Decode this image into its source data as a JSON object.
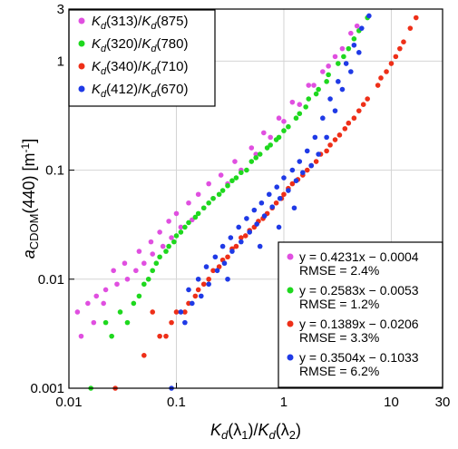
{
  "chart_data": {
    "type": "scatter",
    "xscale": "log",
    "yscale": "log",
    "xlim": [
      0.01,
      30
    ],
    "ylim": [
      0.001,
      3
    ],
    "grid": true,
    "xticks": [
      0.01,
      0.1,
      1,
      10,
      30
    ],
    "xtick_labels": [
      "0.01",
      "0.1",
      "1",
      "10",
      "30"
    ],
    "yticks": [
      0.001,
      0.01,
      0.1,
      1,
      3
    ],
    "ytick_labels": [
      "0.001",
      "0.01",
      "0.1",
      "1",
      "3"
    ],
    "xlabel": {
      "p1": "K",
      "p1_sub": "d",
      "p2": "(λ",
      "p2_sub": "1",
      "p3": ")/",
      "p4": "K",
      "p4_sub": "d",
      "p5": "(λ",
      "p5_sub": "2",
      "p6": ")"
    },
    "ylabel": {
      "main": "a",
      "sub": "CDOM",
      "rest": "(440) [m",
      "sup": "-1",
      "end": "]"
    },
    "legend_position": "top-left",
    "fit_box_position": "bottom-right",
    "series": [
      {
        "name": {
          "k": "K",
          "d": "d",
          "num": "(313)/",
          "den": "(875)"
        },
        "color": "#e04fe0",
        "fit": {
          "equation": "y = 0.4231x − 0.0004",
          "rmse": "RMSE = 2.4%"
        },
        "x": [
          0.012,
          0.015,
          0.018,
          0.022,
          0.028,
          0.035,
          0.042,
          0.05,
          0.06,
          0.075,
          0.09,
          0.11,
          0.14,
          0.18,
          0.22,
          0.3,
          0.4,
          0.55,
          0.75,
          1.0,
          1.4,
          1.9,
          2.6,
          3.5,
          4.8,
          0.013,
          0.017,
          0.021,
          0.026,
          0.033,
          0.045,
          0.058,
          0.07,
          0.085,
          0.1,
          0.13,
          0.16,
          0.2,
          0.26,
          0.35,
          0.5,
          0.65,
          0.9,
          1.2,
          1.7,
          2.3,
          3.0,
          4.2
        ],
        "y": [
          0.005,
          0.006,
          0.007,
          0.008,
          0.009,
          0.01,
          0.012,
          0.014,
          0.017,
          0.02,
          0.024,
          0.03,
          0.035,
          0.045,
          0.055,
          0.075,
          0.1,
          0.14,
          0.2,
          0.28,
          0.4,
          0.6,
          0.9,
          1.3,
          2.1,
          0.003,
          0.004,
          0.006,
          0.012,
          0.014,
          0.018,
          0.022,
          0.027,
          0.034,
          0.04,
          0.05,
          0.06,
          0.075,
          0.09,
          0.12,
          0.16,
          0.22,
          0.3,
          0.42,
          0.6,
          0.8,
          1.1,
          1.8
        ]
      },
      {
        "name": {
          "k": "K",
          "d": "d",
          "num": "(320)/",
          "den": "(780)"
        },
        "color": "#1ed81e",
        "fit": {
          "equation": "y = 0.2583x − 0.0053",
          "rmse": "RMSE = 1.2%"
        },
        "x": [
          0.016,
          0.022,
          0.03,
          0.04,
          0.05,
          0.06,
          0.07,
          0.085,
          0.1,
          0.12,
          0.15,
          0.18,
          0.22,
          0.27,
          0.33,
          0.4,
          0.5,
          0.6,
          0.75,
          0.9,
          1.1,
          1.4,
          1.7,
          2.1,
          2.6,
          3.2,
          4.0,
          5.0,
          6.0,
          0.025,
          0.035,
          0.045,
          0.055,
          0.065,
          0.08,
          0.095,
          0.11,
          0.13,
          0.16,
          0.2,
          0.25,
          0.3,
          0.36,
          0.45,
          0.55,
          0.7,
          0.85,
          1.0,
          1.3,
          1.6,
          2.0,
          2.5,
          3.6,
          4.5
        ],
        "y": [
          0.001,
          0.004,
          0.005,
          0.006,
          0.009,
          0.012,
          0.016,
          0.02,
          0.025,
          0.03,
          0.037,
          0.045,
          0.055,
          0.065,
          0.08,
          0.095,
          0.12,
          0.14,
          0.17,
          0.2,
          0.25,
          0.33,
          0.45,
          0.55,
          0.75,
          0.95,
          1.3,
          1.9,
          2.5,
          0.003,
          0.004,
          0.007,
          0.01,
          0.014,
          0.018,
          0.022,
          0.027,
          0.033,
          0.04,
          0.05,
          0.06,
          0.072,
          0.085,
          0.1,
          0.13,
          0.16,
          0.19,
          0.23,
          0.3,
          0.38,
          0.5,
          0.65,
          1.1,
          1.6
        ]
      },
      {
        "name": {
          "k": "K",
          "d": "d",
          "num": "(340)/",
          "den": "(710)"
        },
        "color": "#ee2f18",
        "fit": {
          "equation": "y = 0.1389x − 0.0206",
          "rmse": "RMSE = 3.3%"
        },
        "x": [
          0.027,
          0.05,
          0.07,
          0.09,
          0.12,
          0.15,
          0.18,
          0.22,
          0.27,
          0.33,
          0.4,
          0.48,
          0.58,
          0.7,
          0.85,
          1.0,
          1.2,
          1.5,
          1.8,
          2.2,
          2.7,
          3.3,
          4.0,
          5.0,
          6.0,
          7.5,
          9.0,
          11.0,
          13.0,
          15.0,
          17.0,
          0.06,
          0.08,
          0.1,
          0.13,
          0.16,
          0.2,
          0.25,
          0.3,
          0.36,
          0.44,
          0.53,
          0.64,
          0.78,
          0.95,
          1.1,
          1.35,
          1.65,
          2.0,
          2.5,
          3.0,
          3.7,
          4.5,
          5.5,
          8.0,
          10.0,
          12.0
        ],
        "y": [
          0.001,
          0.002,
          0.003,
          0.004,
          0.005,
          0.007,
          0.009,
          0.012,
          0.015,
          0.019,
          0.024,
          0.028,
          0.034,
          0.04,
          0.05,
          0.06,
          0.075,
          0.09,
          0.11,
          0.14,
          0.17,
          0.21,
          0.27,
          0.35,
          0.45,
          0.6,
          0.8,
          1.1,
          1.5,
          2.0,
          2.5,
          0.005,
          0.003,
          0.005,
          0.006,
          0.008,
          0.01,
          0.013,
          0.016,
          0.02,
          0.025,
          0.03,
          0.036,
          0.045,
          0.055,
          0.068,
          0.082,
          0.1,
          0.12,
          0.15,
          0.19,
          0.24,
          0.3,
          0.4,
          0.7,
          0.95,
          1.3
        ]
      },
      {
        "name": {
          "k": "K",
          "d": "d",
          "num": "(412)/",
          "den": "(670)"
        },
        "color": "#1f3ae6",
        "fit": {
          "equation": "y = 0.3504x − 0.1033",
          "rmse": "RMSE = 6.2%"
        },
        "x": [
          0.09,
          0.11,
          0.13,
          0.16,
          0.19,
          0.23,
          0.27,
          0.32,
          0.38,
          0.45,
          0.53,
          0.62,
          0.73,
          0.86,
          1.0,
          1.2,
          1.4,
          1.65,
          1.95,
          2.3,
          2.7,
          3.2,
          3.8,
          4.5,
          5.3,
          6.2,
          0.12,
          0.14,
          0.17,
          0.2,
          0.24,
          0.28,
          0.33,
          0.4,
          0.48,
          0.56,
          0.66,
          0.78,
          0.92,
          1.1,
          1.3,
          1.5,
          1.8,
          2.1,
          2.5,
          3.0,
          3.5,
          4.2,
          5.0,
          0.3,
          0.6,
          0.9,
          1.25
        ],
        "y": [
          0.001,
          0.005,
          0.008,
          0.01,
          0.013,
          0.016,
          0.02,
          0.024,
          0.03,
          0.036,
          0.043,
          0.05,
          0.06,
          0.07,
          0.085,
          0.1,
          0.12,
          0.15,
          0.2,
          0.3,
          0.45,
          0.65,
          0.95,
          1.4,
          2.0,
          2.6,
          0.004,
          0.006,
          0.007,
          0.009,
          0.012,
          0.014,
          0.018,
          0.022,
          0.027,
          0.032,
          0.038,
          0.046,
          0.055,
          0.065,
          0.08,
          0.095,
          0.11,
          0.14,
          0.2,
          0.35,
          0.55,
          0.8,
          1.2,
          0.01,
          0.02,
          0.03,
          0.045
        ]
      }
    ]
  }
}
